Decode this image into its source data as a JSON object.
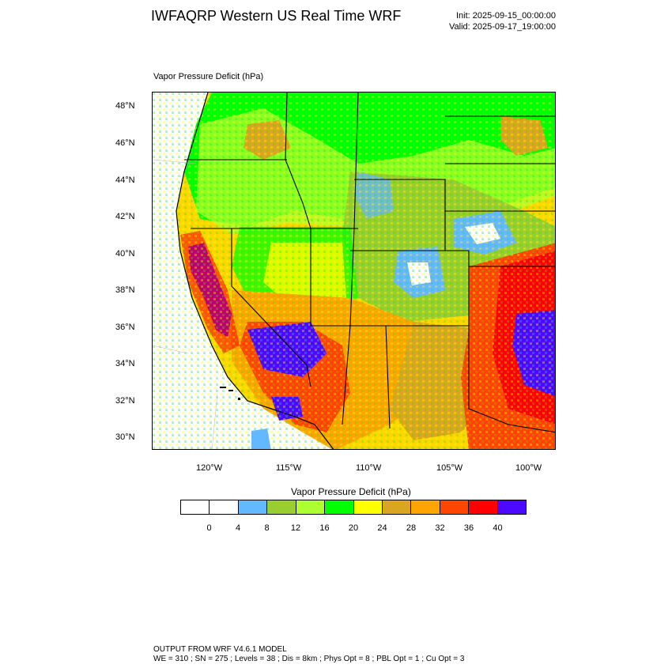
{
  "header": {
    "title": "IWFAQRP Western US Real Time WRF",
    "init": "Init: 2025-09-15_00:00:00",
    "valid": "Valid: 2025-09-17_19:00:00"
  },
  "field_label": "Vapor Pressure Deficit   (hPa)",
  "map": {
    "lat_labels": [
      "48°N",
      "46°N",
      "44°N",
      "42°N",
      "40°N",
      "38°N",
      "36°N",
      "34°N",
      "32°N",
      "30°N"
    ],
    "lon_labels": [
      "120°W",
      "115°W",
      "110°W",
      "105°W",
      "100°W"
    ],
    "land_color": "#ffd700",
    "ocean_color": "#ffffff"
  },
  "colorbar": {
    "title": "Vapor Pressure Deficit  (hPa)",
    "colors": [
      "#ffffff",
      "#ffffff",
      "#63b8ff",
      "#9acd32",
      "#adff2f",
      "#00ff00",
      "#ffff00",
      "#daa520",
      "#ffa500",
      "#ff4500",
      "#ff0000",
      "#4b0aff"
    ],
    "ticks": [
      "0",
      "4",
      "8",
      "12",
      "16",
      "20",
      "24",
      "28",
      "32",
      "36",
      "40"
    ]
  },
  "footer": {
    "line1": "OUTPUT FROM WRF V4.6.1 MODEL",
    "line2": "WE = 310 ; SN = 275 ; Levels = 38 ; Dis = 8km ; Phys Opt = 8 ; PBL Opt = 1 ; Cu Opt = 3"
  }
}
